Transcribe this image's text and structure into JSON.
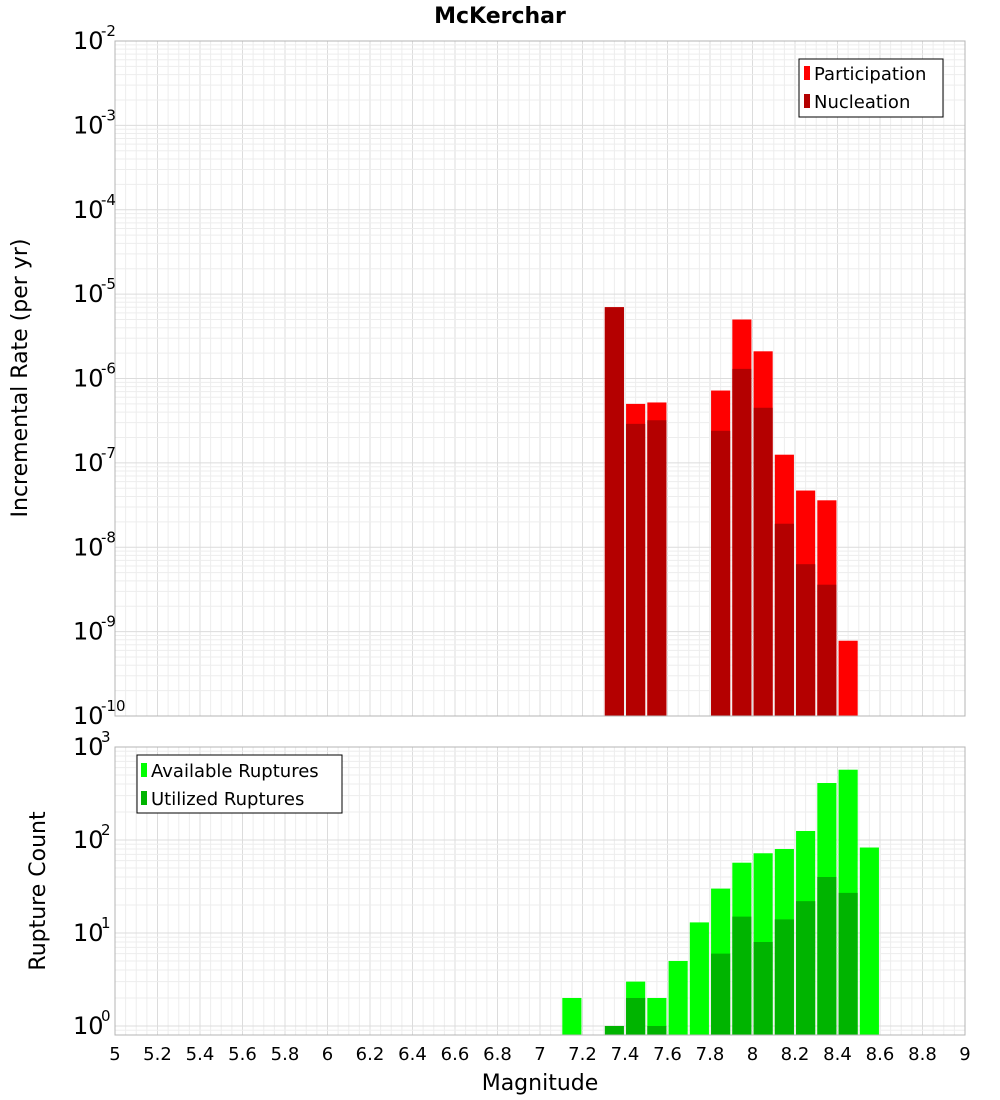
{
  "chart_data": [
    {
      "type": "bar",
      "title": "McKerchar",
      "xlabel": "",
      "ylabel": "Incremental Rate (per yr)",
      "yscale": "log",
      "ylim": [
        1e-10,
        0.01
      ],
      "xlim": [
        5,
        9
      ],
      "y_tick_exponents": [
        -2,
        -3,
        -4,
        -5,
        -6,
        -7,
        -8,
        -9,
        -10
      ],
      "bar_width": 0.09,
      "grid": true,
      "legend_position": "top-right",
      "colors": {
        "Participation": "#ff0000",
        "Nucleation": "#b40000"
      },
      "series": [
        {
          "name": "Participation",
          "x": [
            7.35,
            7.45,
            7.55,
            7.85,
            7.95,
            8.05,
            8.15,
            8.25,
            8.35,
            8.45
          ],
          "values": [
            7e-06,
            5e-07,
            5.2e-07,
            7.2e-07,
            5e-06,
            2.1e-06,
            1.25e-07,
            4.7e-08,
            3.6e-08,
            7.8e-10
          ]
        },
        {
          "name": "Nucleation",
          "x": [
            7.35,
            7.45,
            7.55,
            7.85,
            7.95,
            8.05,
            8.15,
            8.25,
            8.35
          ],
          "values": [
            7e-06,
            2.9e-07,
            3.2e-07,
            2.4e-07,
            1.3e-06,
            4.5e-07,
            1.9e-08,
            6.3e-09,
            3.6e-09
          ]
        }
      ]
    },
    {
      "type": "bar",
      "title": "",
      "xlabel": "Magnitude",
      "ylabel": "Rupture Count",
      "yscale": "log",
      "ylim": [
        0.8,
        1000
      ],
      "xlim": [
        5,
        9
      ],
      "x_ticks": [
        "5",
        "5.2",
        "5.4",
        "5.6",
        "5.8",
        "6",
        "6.2",
        "6.4",
        "6.6",
        "6.8",
        "7",
        "7.2",
        "7.4",
        "7.6",
        "7.8",
        "8",
        "8.2",
        "8.4",
        "8.6",
        "8.8",
        "9"
      ],
      "y_tick_exponents": [
        3,
        2,
        1,
        0
      ],
      "bar_width": 0.09,
      "grid": true,
      "legend_position": "top-left",
      "colors": {
        "Available Ruptures": "#00ff00",
        "Utilized Ruptures": "#00b400"
      },
      "series": [
        {
          "name": "Available Ruptures",
          "x": [
            7.15,
            7.45,
            7.55,
            7.65,
            7.75,
            7.85,
            7.95,
            8.05,
            8.15,
            8.25,
            8.35,
            8.45,
            8.55
          ],
          "values": [
            2,
            3,
            2,
            5,
            13,
            30,
            57,
            72,
            80,
            125,
            410,
            570,
            83
          ]
        },
        {
          "name": "Utilized Ruptures",
          "x": [
            7.35,
            7.45,
            7.55,
            7.85,
            7.95,
            8.05,
            8.15,
            8.25,
            8.35,
            8.45
          ],
          "values": [
            1,
            2,
            1,
            6,
            15,
            8,
            14,
            22,
            40,
            27
          ]
        }
      ]
    }
  ]
}
